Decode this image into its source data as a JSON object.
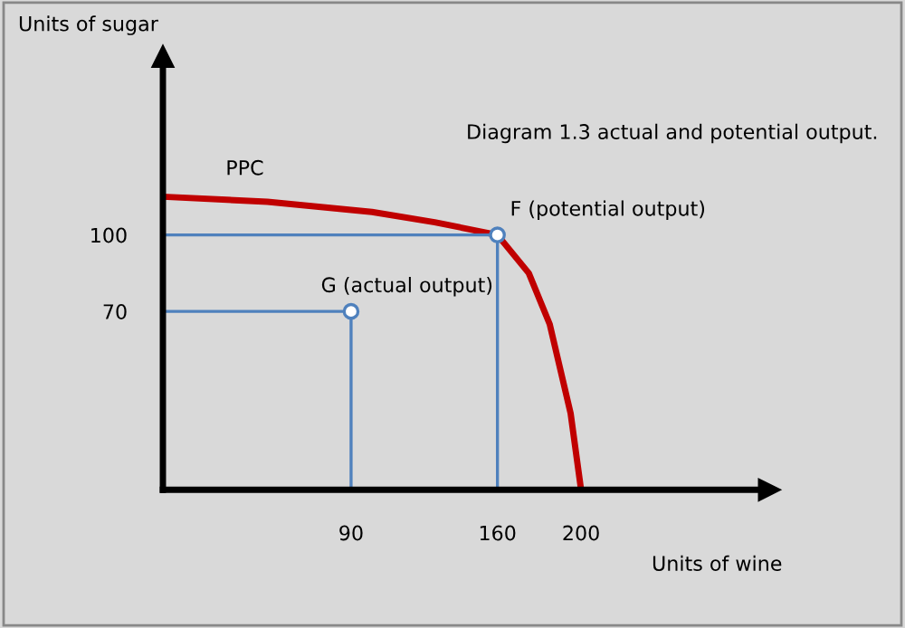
{
  "chart_data": {
    "type": "line",
    "title": "Diagram 1.3 actual and potential output.",
    "xlabel": "Units of wine",
    "ylabel": "Units of sugar",
    "xlim": [
      0,
      290
    ],
    "ylim": [
      0,
      170
    ],
    "xticks": [
      90,
      160,
      200
    ],
    "yticks": [
      70,
      100
    ],
    "grid": false,
    "legend": false,
    "series": [
      {
        "color": "#c00000",
        "x": [
          0,
          50,
          100,
          130,
          160,
          175,
          185,
          195,
          200
        ],
        "values": [
          115,
          113,
          109,
          105,
          100,
          85,
          65,
          30,
          0
        ]
      },
      {
        "color": "#4f81bd",
        "x": [
          0,
          160,
          160
        ],
        "values": [
          100,
          100,
          0
        ]
      },
      {
        "color": "#4f81bd",
        "x": [
          0,
          90,
          90
        ],
        "values": [
          70,
          70,
          0
        ]
      },
      {
        "type": "scatter",
        "color": "#4f81bd",
        "x": [
          160,
          90
        ],
        "values": [
          100,
          70
        ]
      }
    ],
    "annotations": [
      {
        "text": "PPC",
        "x": 30,
        "y": 114
      },
      {
        "text": "F (potential output)",
        "x": 160,
        "y": 100
      },
      {
        "text": "G (actual output)",
        "x": 90,
        "y": 70
      }
    ]
  }
}
